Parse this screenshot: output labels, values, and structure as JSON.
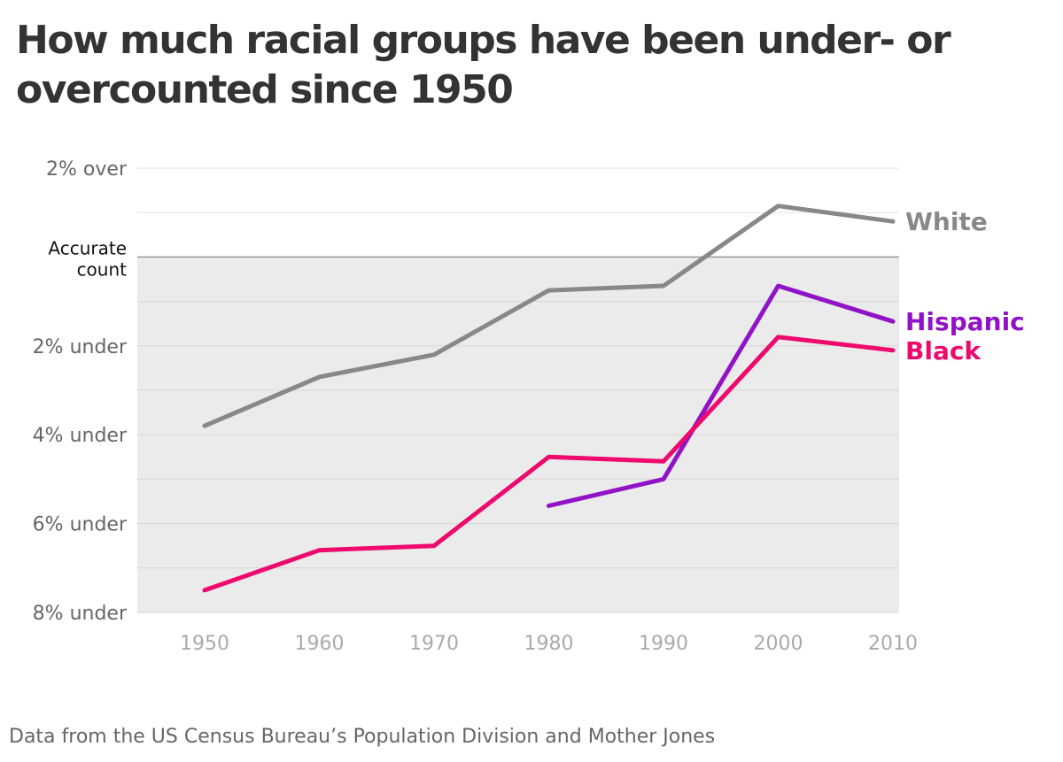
{
  "chart_data": {
    "type": "line",
    "title": "How much racial groups have been under- or overcounted since 1950",
    "source": "Data from the US Census Bureau’s Population Division and Mother Jones",
    "x": [
      1950,
      1960,
      1970,
      1980,
      1990,
      2000,
      2010
    ],
    "y_ticks": [
      {
        "value": 2,
        "label": "2% over"
      },
      {
        "value": 0,
        "label": "Accurate count",
        "lines": [
          "Accurate",
          "count"
        ]
      },
      {
        "value": -2,
        "label": "2% under"
      },
      {
        "value": -4,
        "label": "4% under"
      },
      {
        "value": -6,
        "label": "6% under"
      },
      {
        "value": -8,
        "label": "8% under"
      }
    ],
    "ylim": [
      -8,
      2
    ],
    "grid": true,
    "undercount_shading": true,
    "series": [
      {
        "name": "White",
        "color": "#888888",
        "values": [
          -3.8,
          -2.7,
          -2.2,
          -0.75,
          -0.65,
          1.15,
          0.8
        ]
      },
      {
        "name": "Hispanic",
        "color": "#9013c8",
        "values": [
          null,
          null,
          null,
          -5.6,
          -5.0,
          -0.65,
          -1.45
        ]
      },
      {
        "name": "Black",
        "color": "#ee0a6d",
        "values": [
          -7.5,
          -6.6,
          -6.5,
          -4.5,
          -4.6,
          -1.8,
          -2.1
        ]
      }
    ]
  }
}
